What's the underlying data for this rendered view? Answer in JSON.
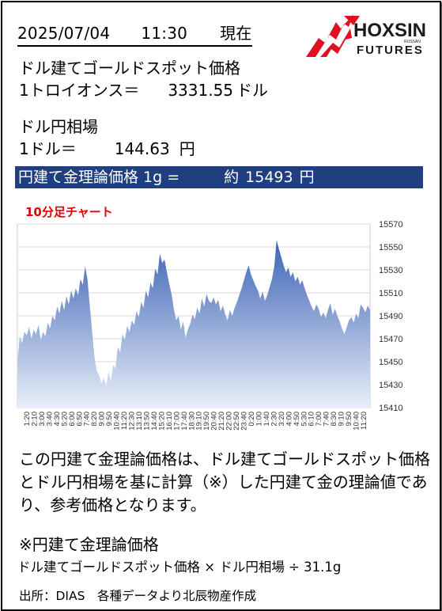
{
  "header": {
    "date": "2025/07/04",
    "time": "11:30",
    "as_of": "現在"
  },
  "logo": {
    "name": "HOXSIN",
    "small": "RUSSAN",
    "sub": "FUTURES",
    "brand_color": "#e01020"
  },
  "gold": {
    "title": "ドル建てゴールドスポット価格",
    "unit_label": "1トロイオンス＝",
    "value": "3331.55",
    "currency": "ドル"
  },
  "fx": {
    "title": "ドル円相場",
    "unit_label": "1ドル＝",
    "value": "144.63",
    "currency": "円"
  },
  "theory": {
    "label": "円建て金理論価格 1g =",
    "approx": "約",
    "value": "15493",
    "currency": "円",
    "bg_color": "#1f3f80"
  },
  "chart_data": {
    "type": "area",
    "title": "10分足チャート",
    "ylim": [
      15410,
      15570
    ],
    "yticks": [
      15410,
      15430,
      15450,
      15470,
      15490,
      15510,
      15530,
      15550,
      15570
    ],
    "x_tick_labels": [
      "1:20",
      "2:10",
      "3:00",
      "3:40",
      "4:30",
      "5:20",
      "6:00",
      "6:50",
      "7:40",
      "8:20",
      "9:00",
      "9:50",
      "10:40",
      "11:20",
      "12:30",
      "13:10",
      "13:50",
      "14:40",
      "15:20",
      "16:10",
      "17:00",
      "17:40",
      "18:30",
      "19:10",
      "19:50",
      "20:40",
      "21:20",
      "22:00",
      "22:50",
      "23:40",
      "0:20",
      "1:00",
      "1:40",
      "2:30",
      "3:20",
      "4:00",
      "4:50",
      "5:30",
      "6:10",
      "7:00",
      "7:40",
      "8:30",
      "9:10",
      "9:50",
      "10:40",
      "11:20"
    ],
    "values": [
      15448,
      15472,
      15466,
      15476,
      15473,
      15480,
      15470,
      15478,
      15474,
      15482,
      15469,
      15476,
      15472,
      15484,
      15479,
      15490,
      15486,
      15498,
      15492,
      15503,
      15495,
      15507,
      15500,
      15512,
      15505,
      15514,
      15508,
      15522,
      15517,
      15533,
      15522,
      15499,
      15476,
      15454,
      15442,
      15438,
      15431,
      15436,
      15428,
      15441,
      15433,
      15447,
      15444,
      15463,
      15458,
      15474,
      15469,
      15481,
      15476,
      15486,
      15482,
      15494,
      15489,
      15502,
      15497,
      15512,
      15506,
      15519,
      15514,
      15531,
      15526,
      15544,
      15536,
      15539,
      15528,
      15518,
      15509,
      15496,
      15486,
      15490,
      15478,
      15485,
      15471,
      15478,
      15483,
      15491,
      15487,
      15497,
      15492,
      15505,
      15498,
      15509,
      15503,
      15501,
      15506,
      15500,
      15504,
      15494,
      15499,
      15491,
      15486,
      15495,
      15490,
      15497,
      15502,
      15508,
      15514,
      15521,
      15528,
      15534,
      15526,
      15521,
      15516,
      15512,
      15505,
      15511,
      15503,
      15508,
      15515,
      15522,
      15533,
      15556,
      15548,
      15541,
      15534,
      15528,
      15532,
      15524,
      15528,
      15520,
      15524,
      15517,
      15521,
      15514,
      15508,
      15503,
      15498,
      15494,
      15500,
      15496,
      15489,
      15493,
      15488,
      15495,
      15501,
      15491,
      15496,
      15490,
      15485,
      15479,
      15474,
      15480,
      15486,
      15489,
      15484,
      15492,
      15488,
      15500,
      15497,
      15493,
      15499,
      15495
    ]
  },
  "explanation": {
    "text": "この円建て金理論価格は、ドル建てゴールドスポット価格とドル円相場を基に計算（※）した円建て金の理論値であり、参考価格となります。"
  },
  "formula": {
    "title": "※円建て金理論価格",
    "expression": "ドル建てゴールドスポット価格 × ドル円相場 ÷ 31.1g"
  },
  "source": {
    "text": "出所：DIAS　各種データより北辰物産作成"
  }
}
